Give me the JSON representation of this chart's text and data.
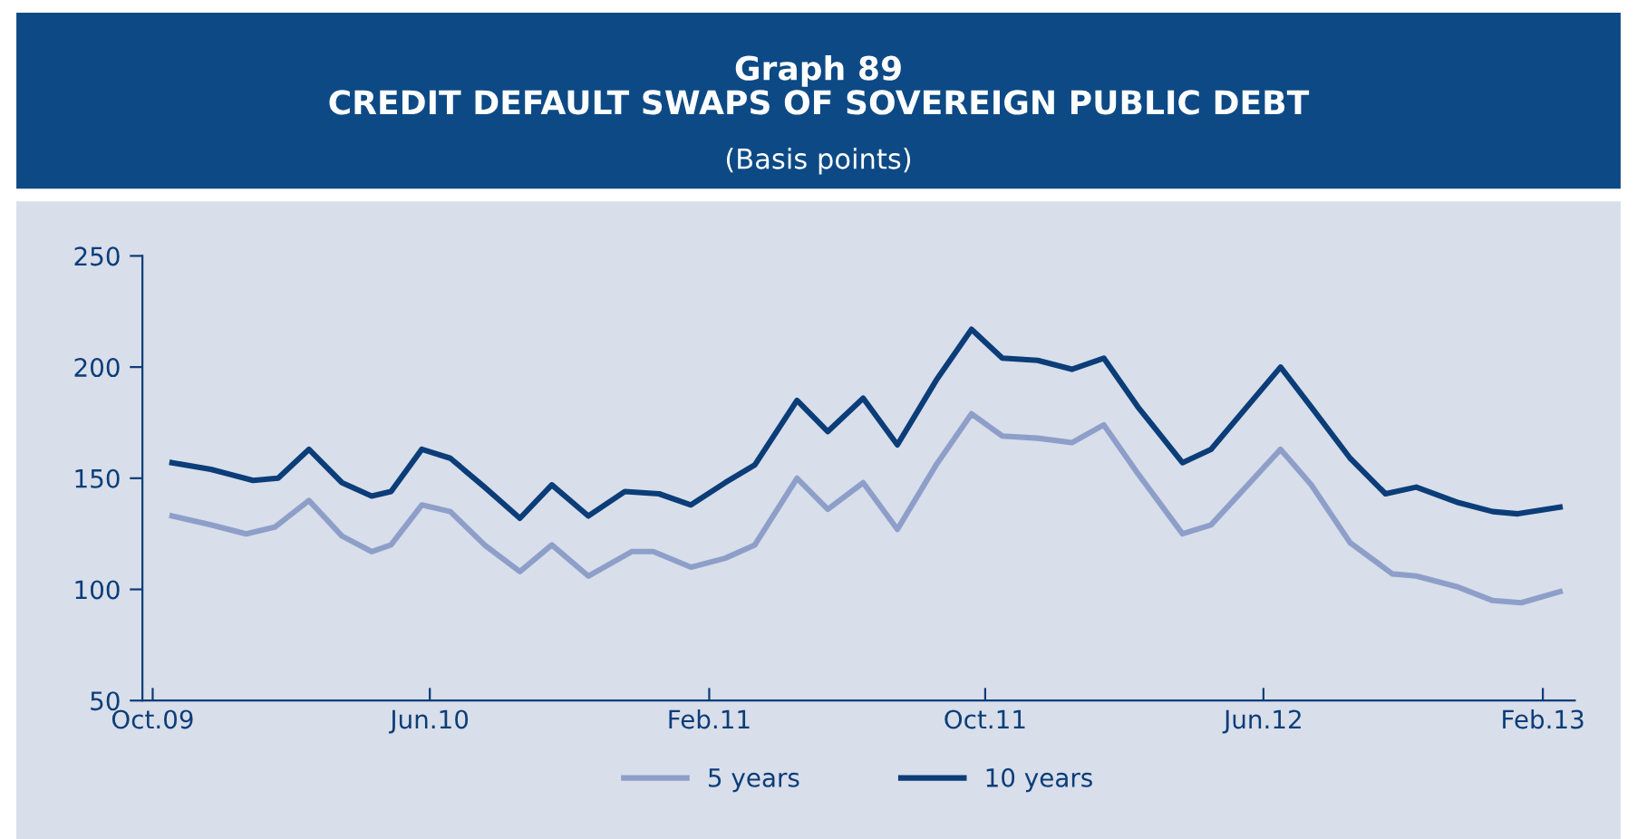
{
  "chart_data": {
    "type": "line",
    "title": "Graph 89\nCREDIT DEFAULT SWAPS OF SOVEREIGN PUBLIC DEBT",
    "subtitle": "(Basis points)",
    "xlim": [
      "2009-09-22",
      "2013-03-01"
    ],
    "xticks": [
      {
        "value": "2009-10",
        "label": "Oct.09"
      },
      {
        "value": "2010-06",
        "label": "Jun.10"
      },
      {
        "value": "2011-02",
        "label": "Feb.11"
      },
      {
        "value": "2011-10",
        "label": "Oct.11"
      },
      {
        "value": "2012-06",
        "label": "Jun.12"
      },
      {
        "value": "2013-02",
        "label": "Feb.13"
      }
    ],
    "ylim": [
      50,
      250
    ],
    "yticks": [
      50,
      100,
      150,
      200,
      250
    ],
    "legend": "bottom",
    "line_style": "solid",
    "series": [
      {
        "name": "5 years",
        "color": "#8d9fc9",
        "x": [
          "2009-10-18",
          "2009-11-21",
          "2009-12-22",
          "2010-01-16",
          "2010-02-15",
          "2010-03-16",
          "2010-04-11",
          "2010-04-28",
          "2010-05-25",
          "2010-06-19",
          "2010-07-19",
          "2010-08-19",
          "2010-09-16",
          "2010-10-18",
          "2010-11-25",
          "2010-12-14",
          "2011-01-16",
          "2011-02-15",
          "2011-03-13",
          "2011-04-19",
          "2011-05-16",
          "2011-06-16",
          "2011-07-16",
          "2011-08-19",
          "2011-09-19",
          "2011-10-16",
          "2011-11-16",
          "2011-12-16",
          "2012-01-13",
          "2012-02-12",
          "2012-03-22",
          "2012-04-16",
          "2012-06-16",
          "2012-07-13",
          "2012-08-16",
          "2012-09-22",
          "2012-10-13",
          "2012-11-19",
          "2012-12-19",
          "2013-01-13",
          "2013-02-16"
        ],
        "values": [
          133,
          129,
          125,
          128,
          140,
          124,
          117,
          120,
          138,
          135,
          120,
          108,
          120,
          106,
          117,
          117,
          110,
          114,
          120,
          150,
          136,
          148,
          127,
          156,
          179,
          169,
          168,
          166,
          174,
          152,
          125,
          129,
          163,
          147,
          121,
          107,
          106,
          101,
          95,
          94,
          99
        ]
      },
      {
        "name": "10 years",
        "color": "#0b3d78",
        "x": [
          "2009-10-18",
          "2009-11-21",
          "2009-12-28",
          "2010-01-19",
          "2010-02-15",
          "2010-03-16",
          "2010-04-11",
          "2010-04-28",
          "2010-05-25",
          "2010-06-19",
          "2010-07-19",
          "2010-08-19",
          "2010-09-16",
          "2010-10-18",
          "2010-11-19",
          "2010-12-19",
          "2011-01-16",
          "2011-02-15",
          "2011-03-13",
          "2011-04-19",
          "2011-05-16",
          "2011-06-16",
          "2011-07-16",
          "2011-08-19",
          "2011-09-19",
          "2011-10-16",
          "2011-11-16",
          "2011-12-16",
          "2012-01-13",
          "2012-02-12",
          "2012-03-22",
          "2012-04-16",
          "2012-06-16",
          "2012-07-13",
          "2012-08-16",
          "2012-09-16",
          "2012-10-13",
          "2012-11-19",
          "2012-12-19",
          "2013-01-10",
          "2013-02-16"
        ],
        "values": [
          157,
          154,
          149,
          150,
          163,
          148,
          142,
          144,
          163,
          159,
          146,
          132,
          147,
          133,
          144,
          143,
          138,
          148,
          156,
          185,
          171,
          186,
          165,
          194,
          217,
          204,
          203,
          199,
          204,
          182,
          157,
          163,
          200,
          182,
          159,
          143,
          146,
          139,
          135,
          134,
          137
        ]
      }
    ]
  }
}
